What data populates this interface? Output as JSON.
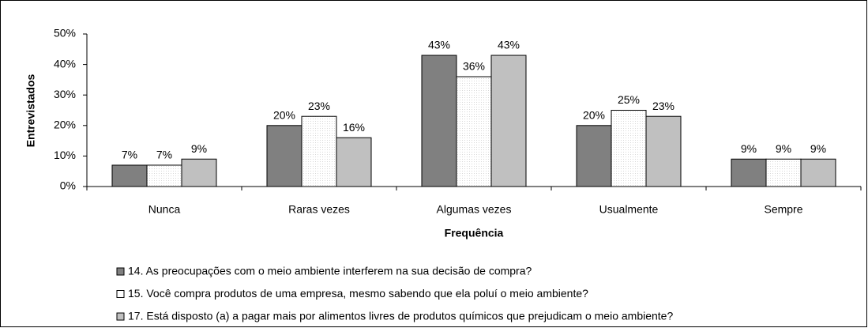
{
  "chart_data": {
    "type": "bar",
    "categories": [
      "Nunca",
      "Raras vezes",
      "Algumas vezes",
      "Usualmente",
      "Sempre"
    ],
    "series": [
      {
        "name": "14. As preocupações com o meio ambiente interferem na sua decisão de compra?",
        "color": "#808080",
        "values": [
          7,
          20,
          43,
          20,
          9
        ],
        "value_labels": [
          "7%",
          "20%",
          "43%",
          "20%",
          "9%"
        ]
      },
      {
        "name": "15. Você compra produtos de uma empresa, mesmo sabendo que ela poluí o meio ambiente?",
        "color": "#ffffff",
        "values": [
          7,
          23,
          36,
          25,
          9
        ],
        "value_labels": [
          "7%",
          "23%",
          "36%",
          "25%",
          "9%"
        ]
      },
      {
        "name": "17. Está disposto (a) a pagar mais por alimentos livres de produtos químicos que prejudicam o meio ambiente?",
        "color": "#c0c0c0",
        "values": [
          9,
          16,
          43,
          23,
          9
        ],
        "value_labels": [
          "9%",
          "16%",
          "43%",
          "23%",
          "9%"
        ]
      }
    ],
    "x_label": "Frequência",
    "y_label": "Entrevistados",
    "ylim": [
      0,
      50
    ],
    "yticks": [
      {
        "value": 0,
        "label": "0%"
      },
      {
        "value": 10,
        "label": "10%"
      },
      {
        "value": 20,
        "label": "20%"
      },
      {
        "value": 30,
        "label": "30%"
      },
      {
        "value": 40,
        "label": "40%"
      },
      {
        "value": 50,
        "label": "50%"
      }
    ],
    "legend": "bottom"
  }
}
